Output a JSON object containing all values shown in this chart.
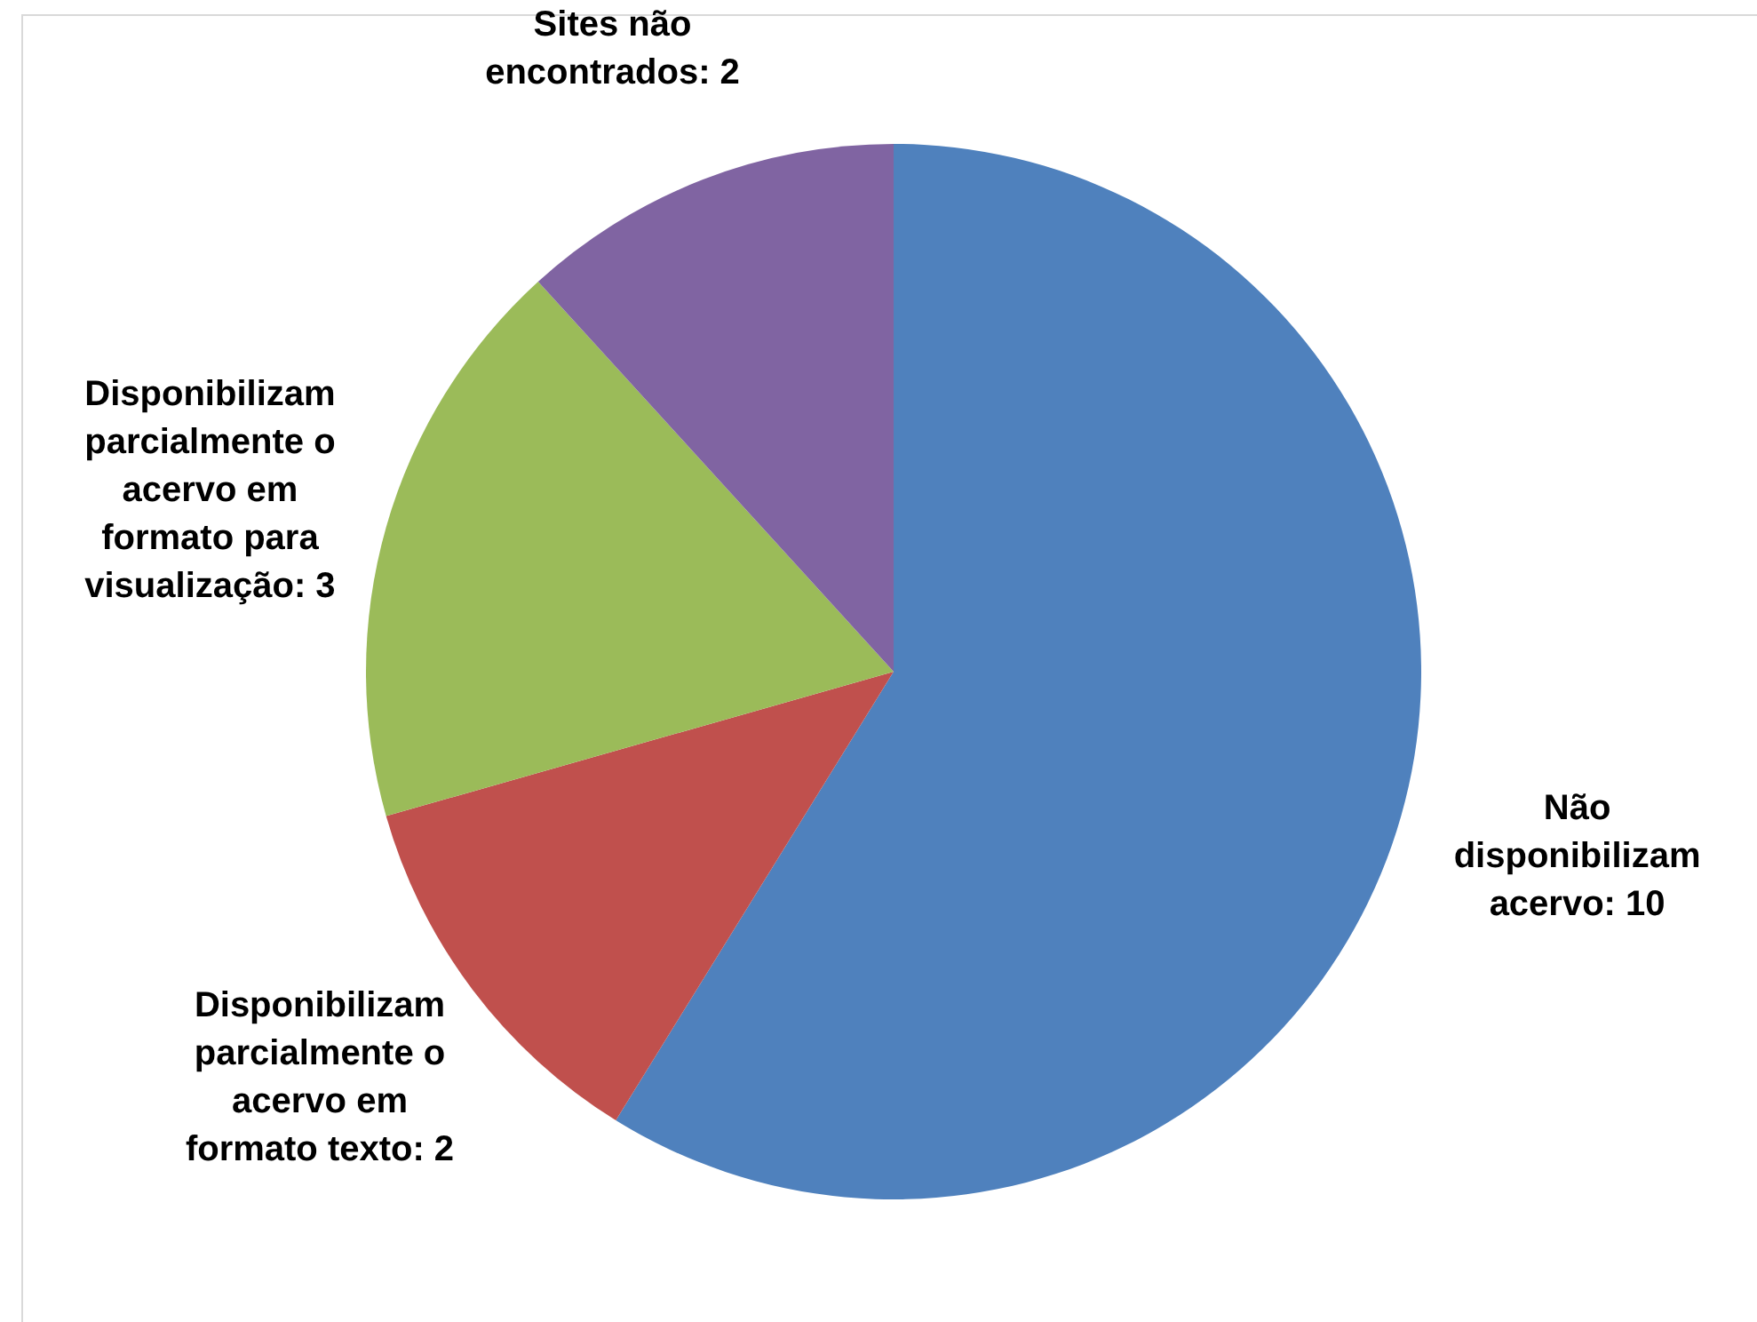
{
  "chart_data": {
    "type": "pie",
    "categories": [
      "Não disponibilizam acervo",
      "Disponibilizam parcialmente o acervo em formato texto",
      "Disponibilizam parcialmente o acervo em formato para visualização",
      "Sites não encontrados"
    ],
    "values": [
      10,
      2,
      3,
      2
    ],
    "colors": [
      "#4f81bd",
      "#c0504d",
      "#9bbb59",
      "#8064a2"
    ],
    "value_labels": [
      ": 10",
      ": 2",
      ": 3",
      ": 2"
    ],
    "legend": false
  }
}
